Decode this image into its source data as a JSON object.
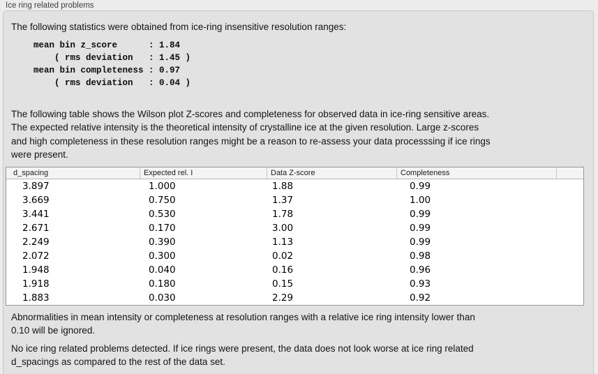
{
  "panel": {
    "title": "Ice ring related problems"
  },
  "intro_text": "The following statistics were obtained from ice-ring insensitive resolution ranges:",
  "stats_block": "mean bin z_score      : 1.84\n    ( rms deviation   : 1.45 )\nmean bin completeness : 0.97\n    ( rms deviation   : 0.04 )",
  "stats": {
    "mean_bin_z_score": "1.84",
    "z_score_rms_deviation": "1.45",
    "mean_bin_completeness": "0.97",
    "completeness_rms_deviation": "0.04"
  },
  "table_description": "The following table shows the Wilson plot Z-scores and completeness for observed data in ice-ring sensitive areas.\nThe expected relative intensity is the theoretical intensity of crystalline ice at the given resolution. Large z-scores\nand high completeness in these resolution ranges might be a reason to re-assess your data processsing if ice rings\nwere present.",
  "table": {
    "columns": [
      "d_spacing",
      "Expected rel. I",
      "Data Z-score",
      "Completeness"
    ],
    "rows": [
      [
        "3.897",
        "1.000",
        "1.88",
        "0.99"
      ],
      [
        "3.669",
        "0.750",
        "1.37",
        "1.00"
      ],
      [
        "3.441",
        "0.530",
        "1.78",
        "0.99"
      ],
      [
        "2.671",
        "0.170",
        "3.00",
        "0.99"
      ],
      [
        "2.249",
        "0.390",
        "1.13",
        "0.99"
      ],
      [
        "2.072",
        "0.300",
        "0.02",
        "0.98"
      ],
      [
        "1.948",
        "0.040",
        "0.16",
        "0.96"
      ],
      [
        "1.918",
        "0.180",
        "0.15",
        "0.93"
      ],
      [
        "1.883",
        "0.030",
        "2.29",
        "0.92"
      ]
    ]
  },
  "ignore_note": "Abnormalities in mean intensity or completeness at resolution ranges with a relative ice ring intensity lower than\n0.10 will be ignored.",
  "conclusion": "No ice ring related problems detected. If ice rings were present, the data does not look worse at ice ring related\nd_spacings as compared to the rest of the data set.",
  "colors": {
    "page_background": "#ececec",
    "panel_background": "#e2e2e2",
    "panel_border": "#c8c8c8",
    "table_background": "#ffffff",
    "table_border": "#969696",
    "table_header_background": "#f4f4f4"
  }
}
